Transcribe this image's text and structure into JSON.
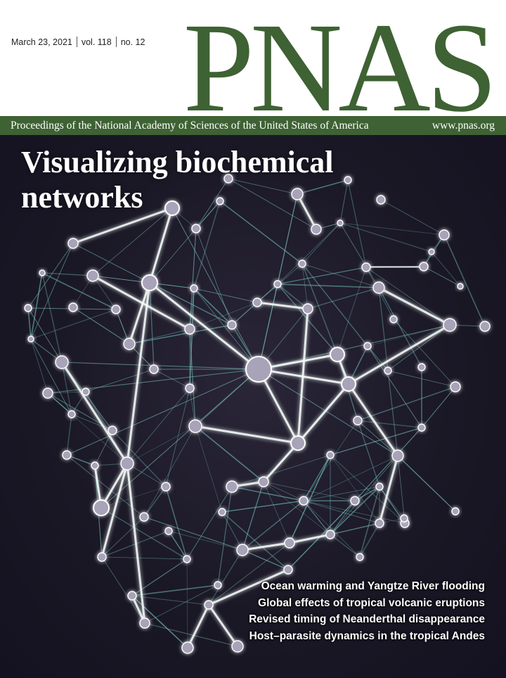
{
  "issue": {
    "date": "March 23, 2021",
    "volume": "vol. 118",
    "number": "no. 12"
  },
  "journal": {
    "logo": "PNAS",
    "full_name": "Proceedings of the National Academy of Sciences of the United States of America",
    "url": "www.pnas.org",
    "brand_color": "#3e6233"
  },
  "cover": {
    "headline": [
      "Visualizing biochemical",
      "networks"
    ],
    "art": "network-graph-illustration",
    "stories": [
      "Ocean warming and Yangtze River flooding",
      "Global effects of tropical volcanic eruptions",
      "Revised timing of Neanderthal disappearance",
      "Host–parasite dynamics in the tropical Andes"
    ]
  }
}
